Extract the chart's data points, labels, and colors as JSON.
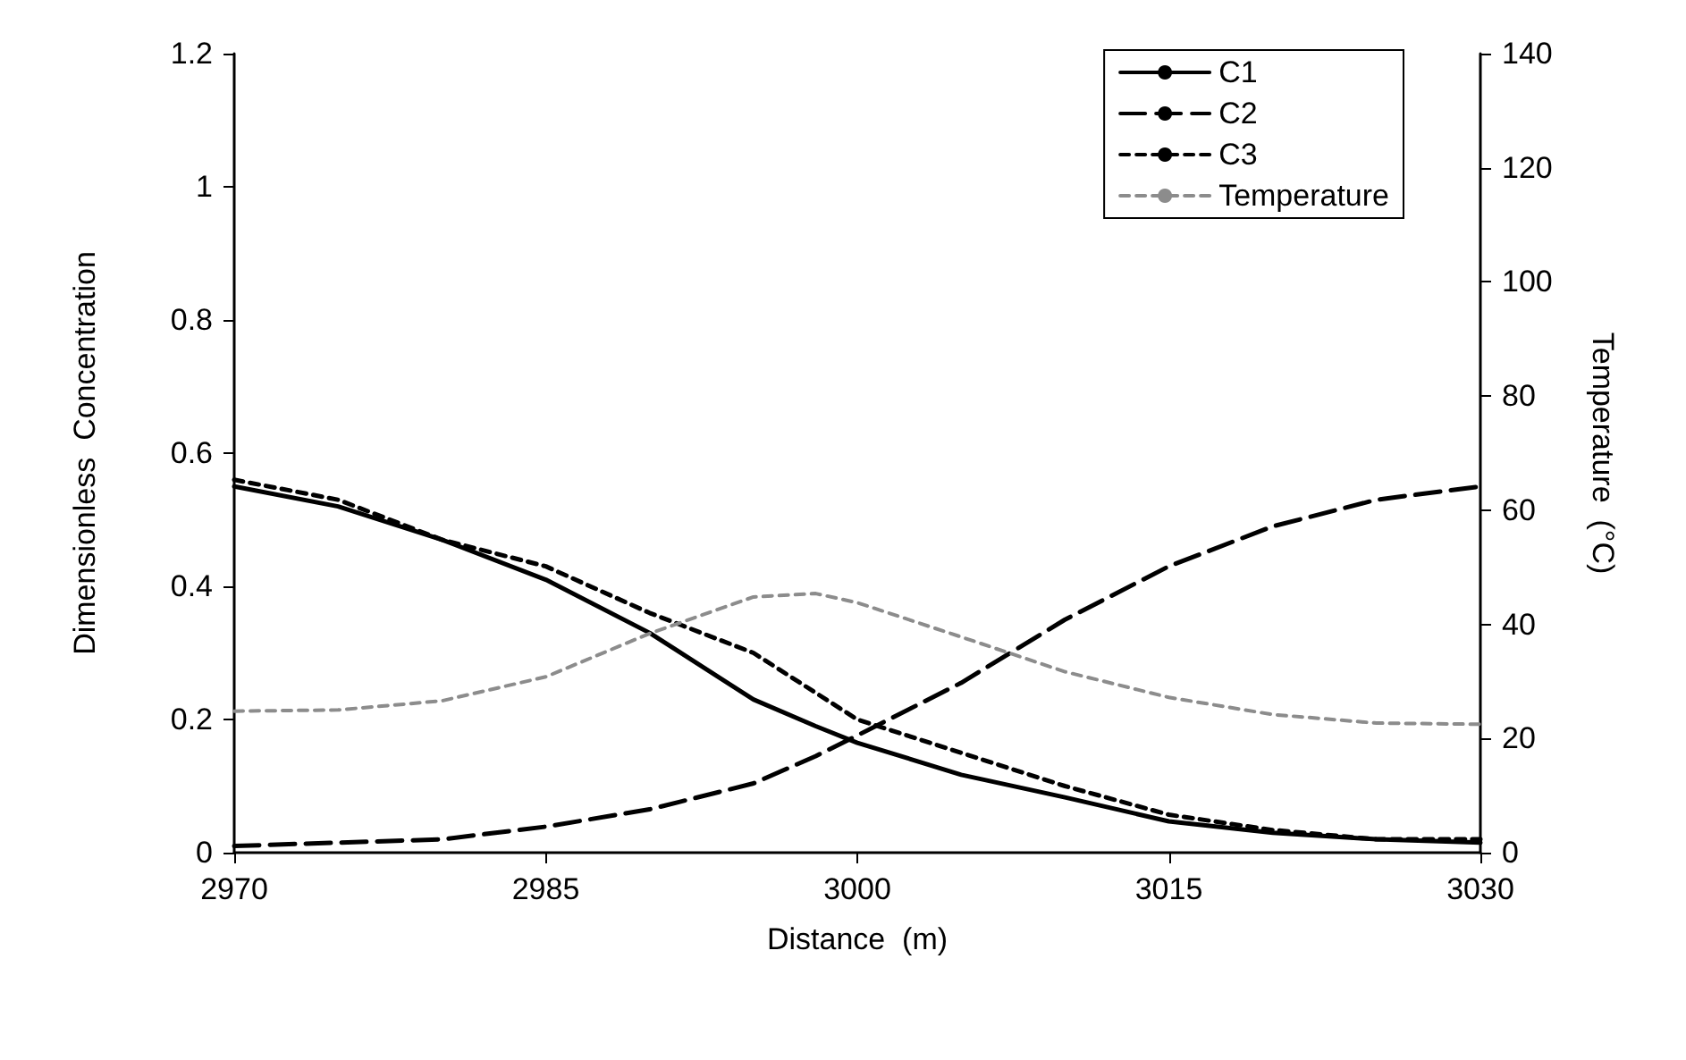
{
  "chart_data": {
    "type": "line",
    "xlabel": "Distance  (m)",
    "ylabel": "Dimensionless  Concentration",
    "y2label": "Temperature  (°C)",
    "x": [
      2970,
      2975,
      2980,
      2985,
      2990,
      2995,
      2998,
      3000,
      3005,
      3010,
      3015,
      3020,
      3025,
      3030
    ],
    "series": [
      {
        "name": "C1",
        "color": "#000000",
        "line_style": "solid",
        "values": [
          0.55,
          0.52,
          0.47,
          0.41,
          0.33,
          0.23,
          0.19,
          0.165,
          0.117,
          0.083,
          0.047,
          0.03,
          0.02,
          0.015
        ]
      },
      {
        "name": "C2",
        "color": "#000000",
        "line_style": "dashed",
        "values": [
          0.01,
          0.015,
          0.02,
          0.039,
          0.065,
          0.104,
          0.145,
          0.176,
          0.255,
          0.35,
          0.43,
          0.49,
          0.53,
          0.55
        ]
      },
      {
        "name": "C3",
        "color": "#000000",
        "line_style": "dotted",
        "values": [
          0.56,
          0.53,
          0.47,
          0.43,
          0.36,
          0.3,
          0.24,
          0.2,
          0.15,
          0.1,
          0.057,
          0.034,
          0.02,
          0.02
        ]
      },
      {
        "name": "Temperature",
        "color": "#8c8c8c",
        "line_style": "dotted",
        "axis": "y2",
        "values": [
          24.8,
          25,
          26.6,
          30.8,
          38.4,
          44.8,
          45.4,
          43.8,
          37.8,
          31.7,
          27.2,
          24.2,
          22.7,
          22.5
        ]
      }
    ],
    "xlim": [
      2970,
      3030
    ],
    "xticks": [
      2970,
      2985,
      3000,
      3015,
      3030
    ],
    "ylim": [
      0,
      1.2
    ],
    "yticks": [
      0,
      0.2,
      0.4,
      0.6,
      0.8,
      1,
      1.2
    ],
    "y2lim": [
      0,
      140
    ],
    "y2ticks": [
      0,
      20,
      40,
      60,
      80,
      100,
      120,
      140
    ],
    "legend": "top right",
    "grid": false,
    "marker": "none"
  }
}
